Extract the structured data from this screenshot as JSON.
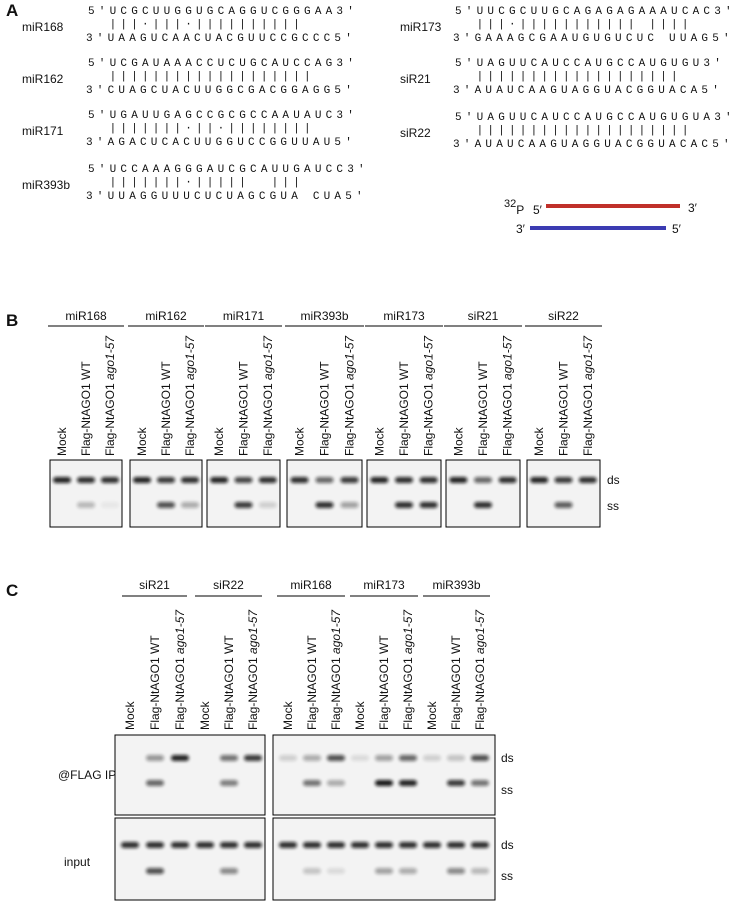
{
  "panel_a": {
    "label": "A",
    "duplexes": [
      {
        "name": "miR168",
        "top": "5'UCGCUUGGUGCAGGUCGGGAA3'",
        "pairing": "  |||·|||·||||||||||",
        "bottom": "3'UAAGUCAACUACGUUCCGCCC5'"
      },
      {
        "name": "miR162",
        "top": "5'UCGAUAAACCUCUGCAUCCAG3'",
        "pairing": "  |||||||||||||||||||",
        "bottom": "3'CUAGCUACUUGGCGACGGAGG5'"
      },
      {
        "name": "miR171",
        "top": "5'UGAUUGAGCCGCGCCAAUAUC3'",
        "pairing": "  |||||||·||·||||||||",
        "bottom": "3'AGACUCACUUGGUCCGGUUAU5'"
      },
      {
        "name": "miR393b",
        "top": "5'UCCAAAGGGAUCGCAUUGAUCC3'",
        "pairing": "  |||||||·|||||  |||",
        "bottom": "3'UUAGGUUUCUCUAGCGUA CUA5'"
      },
      {
        "name": "miR173",
        "top": "5'UUCGCUUGCAGAGAGAAAUCAC3'",
        "pairing": "  |||·||||||||||| ||||",
        "bottom": "3'GAAAGCGAAUGUGUCUC UUAG5'"
      },
      {
        "name": "siR21",
        "top": "5'UAGUUCAUCCAUGCCAUGUGU3'",
        "pairing": "  |||||||||||||||||||",
        "bottom": "3'AUAUCAAGUAGGUACGGUACA5'"
      },
      {
        "name": "siR22",
        "top": "5'UAGUUCAUCCAUGCCAUGUGUA3'",
        "pairing": "  ||||||||||||||||||||",
        "bottom": "3'AUAUCAAGUAGGUACGGUACAC5'"
      }
    ],
    "schematic": {
      "isotope": "32",
      "element": "P",
      "top_5": "5′",
      "top_3": "3′",
      "bottom_3": "3′",
      "bottom_5": "5′"
    }
  },
  "panel_b": {
    "label": "B",
    "groups": [
      "miR168",
      "miR162",
      "miR171",
      "miR393b",
      "miR173",
      "siR21",
      "siR22"
    ],
    "lanes": [
      {
        "text": "Mock"
      },
      {
        "text": "Flag-NtAGO1 WT"
      },
      {
        "text": "Flag-NtAGO1 ",
        "italic": "ago1-57"
      }
    ],
    "bands": [
      "ds",
      "ss"
    ]
  },
  "panel_c": {
    "label": "C",
    "groups": [
      "siR21",
      "siR22",
      "miR168",
      "miR173",
      "miR393b"
    ],
    "lanes": [
      {
        "text": "Mock"
      },
      {
        "text": "Flag-NtAGO1 WT"
      },
      {
        "text": "Flag-NtAGO1 ",
        "italic": "ago1-57"
      }
    ],
    "rows": [
      "@FLAG IP",
      "input"
    ],
    "bands": [
      "ds",
      "ss"
    ]
  }
}
